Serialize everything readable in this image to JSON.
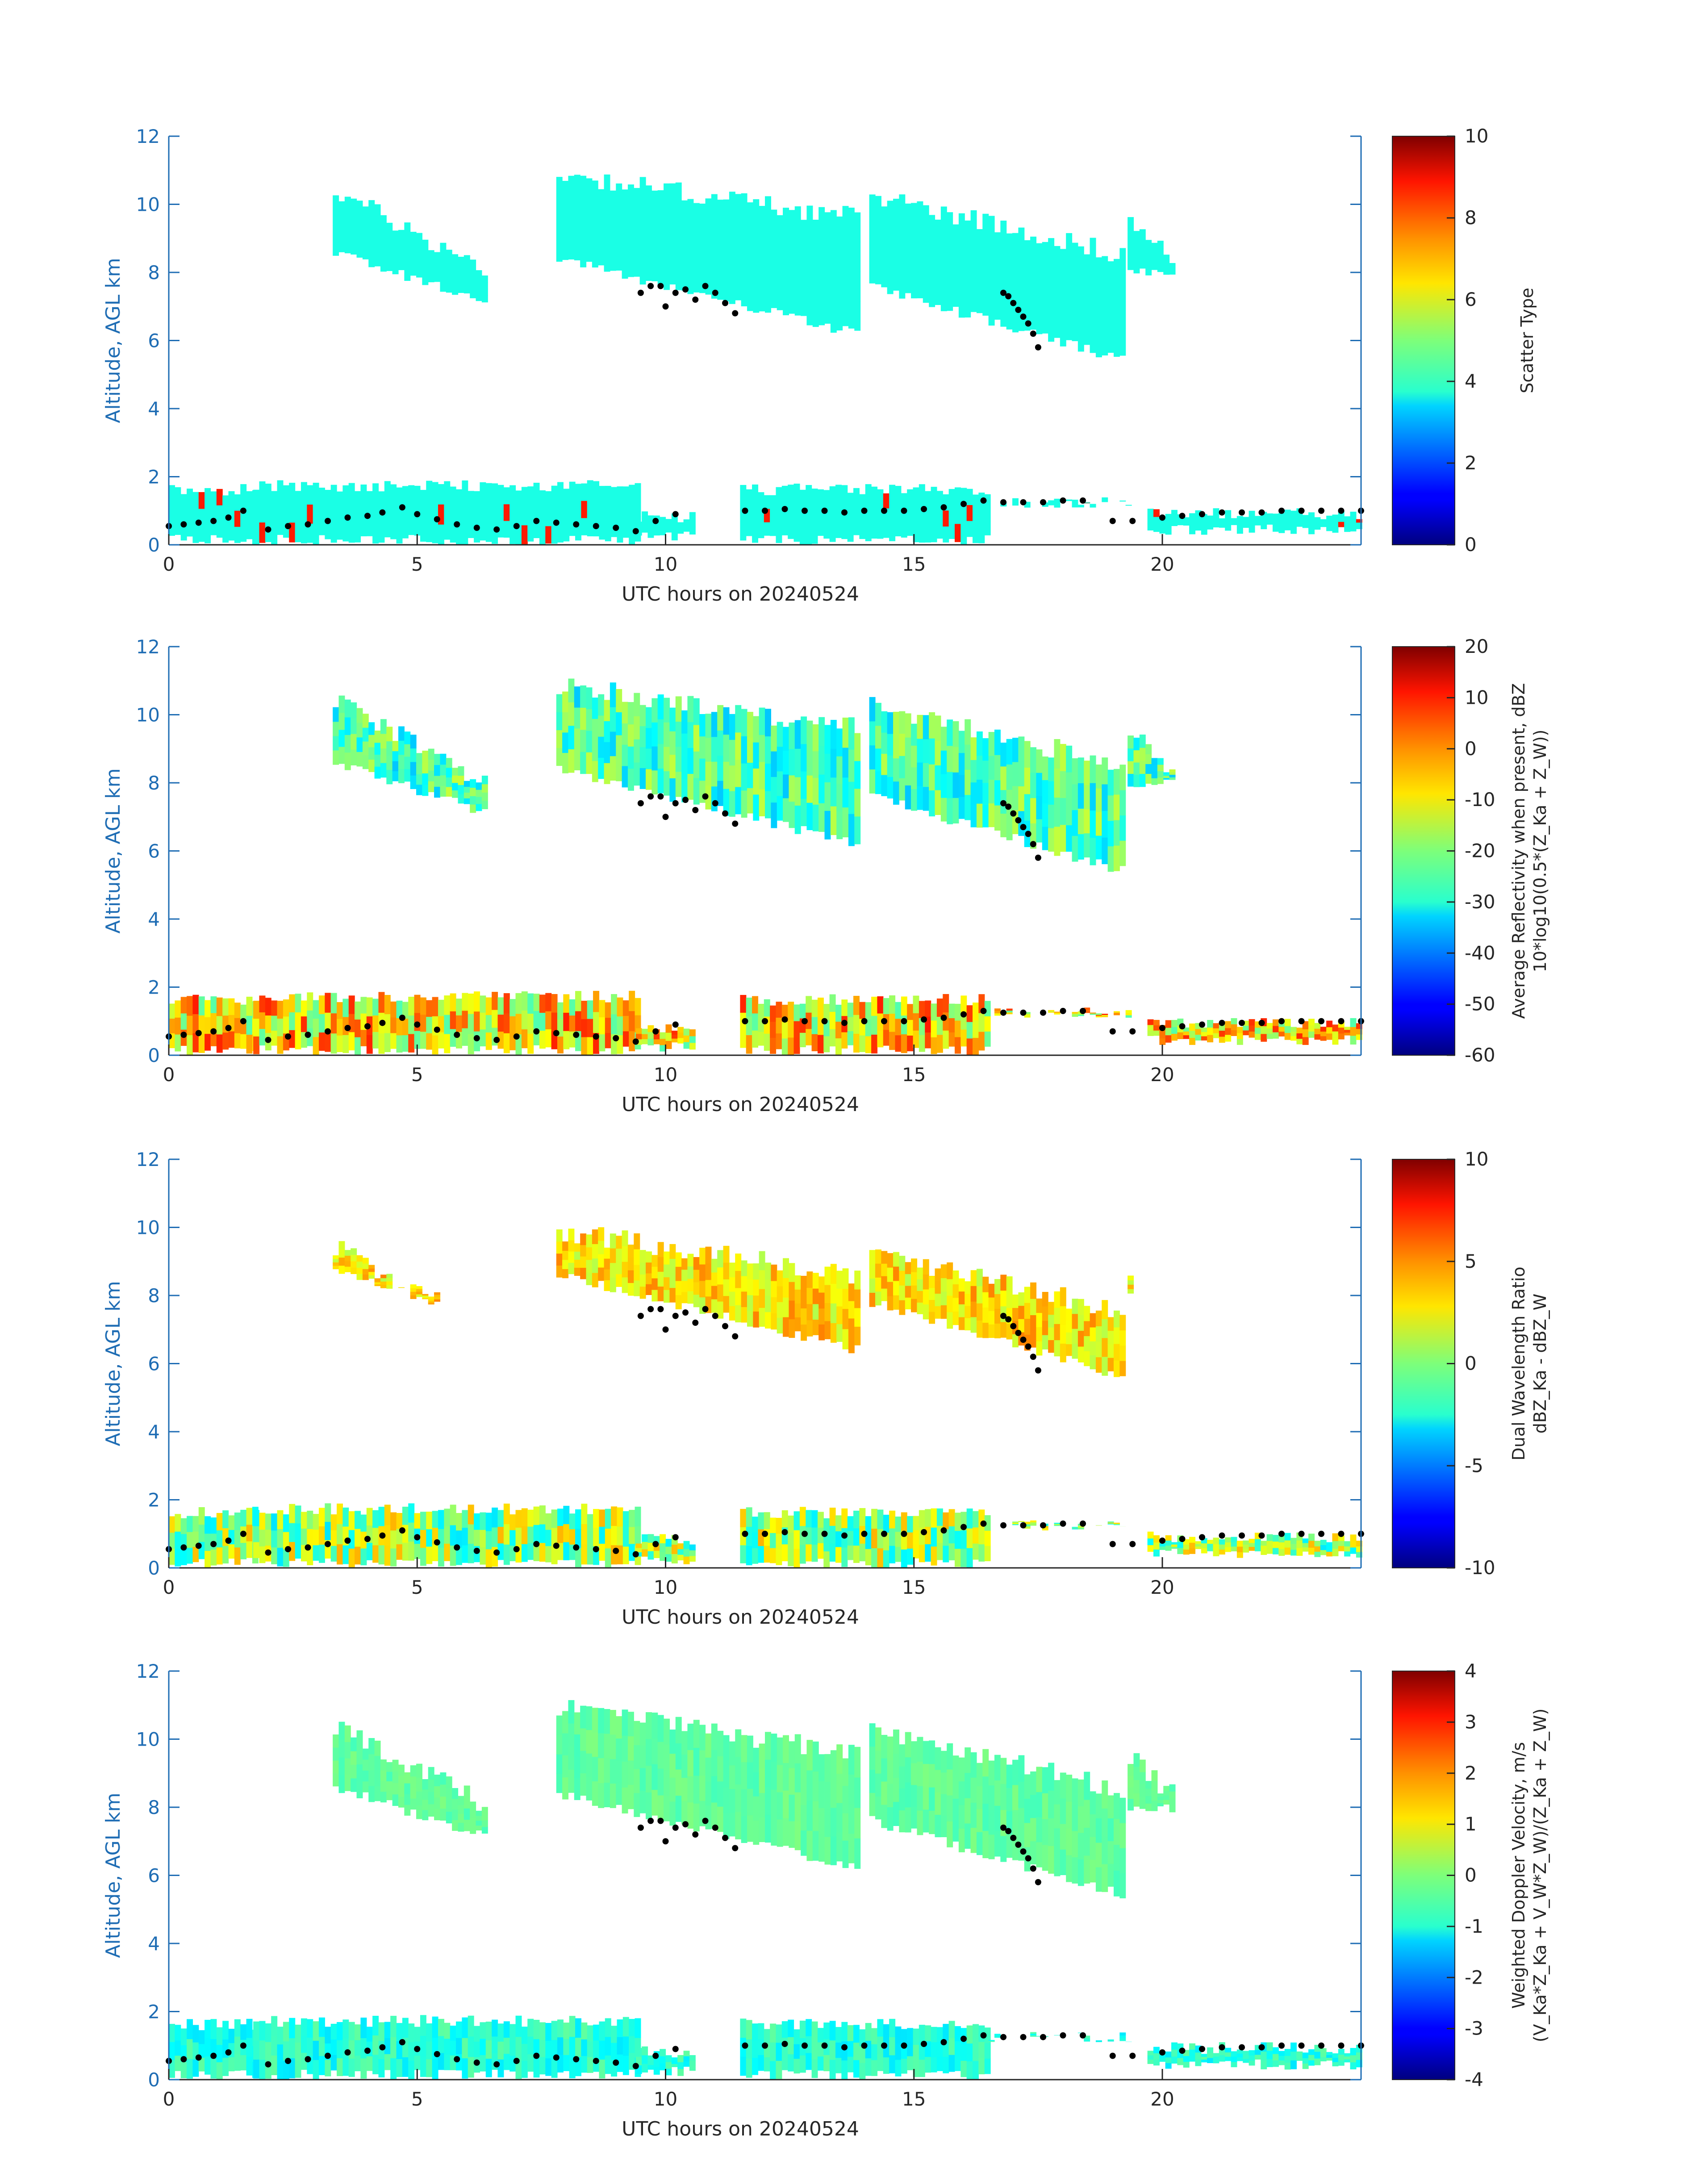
{
  "chart_data": [
    {
      "type": "heatmap",
      "xlabel": "UTC hours on 20240524",
      "ylabel": "Altitude, AGL km",
      "xlim": [
        0,
        24
      ],
      "ylim": [
        0,
        12
      ],
      "xticks": [
        0,
        5,
        10,
        15,
        20
      ],
      "yticks": [
        0,
        2,
        4,
        6,
        8,
        10,
        12
      ],
      "colorbar": {
        "label_lines": [
          "Scatter Type"
        ],
        "range": [
          0,
          10
        ],
        "ticks": [
          0,
          2,
          4,
          6,
          8,
          10
        ],
        "colormap": "jet"
      }
    },
    {
      "type": "heatmap",
      "xlabel": "UTC hours on 20240524",
      "ylabel": "Altitude, AGL km",
      "xlim": [
        0,
        24
      ],
      "ylim": [
        0,
        12
      ],
      "xticks": [
        0,
        5,
        10,
        15,
        20
      ],
      "yticks": [
        0,
        2,
        4,
        6,
        8,
        10,
        12
      ],
      "colorbar": {
        "label_lines": [
          "Average Reflectivity when present, dBZ",
          "10*log10(0.5*(Z_Ka + Z_W))"
        ],
        "range": [
          -60,
          20
        ],
        "ticks": [
          -60,
          -50,
          -40,
          -30,
          -20,
          -10,
          0,
          10,
          20
        ],
        "colormap": "jet"
      }
    },
    {
      "type": "heatmap",
      "xlabel": "UTC hours on 20240524",
      "ylabel": "Altitude, AGL km",
      "xlim": [
        0,
        24
      ],
      "ylim": [
        0,
        12
      ],
      "xticks": [
        0,
        5,
        10,
        15,
        20
      ],
      "yticks": [
        0,
        2,
        4,
        6,
        8,
        10,
        12
      ],
      "colorbar": {
        "label_lines": [
          "Dual Wavelength Ratio",
          "dBZ_Ka - dBZ_W"
        ],
        "range": [
          -10,
          10
        ],
        "ticks": [
          -10,
          -5,
          0,
          5,
          10
        ],
        "colormap": "jet"
      }
    },
    {
      "type": "heatmap",
      "xlabel": "UTC hours on 20240524",
      "ylabel": "Altitude, AGL km",
      "xlim": [
        0,
        24
      ],
      "ylim": [
        0,
        12
      ],
      "xticks": [
        0,
        5,
        10,
        15,
        20
      ],
      "yticks": [
        0,
        2,
        4,
        6,
        8,
        10,
        12
      ],
      "colorbar": {
        "label_lines": [
          "Weighted Doppler Velocity, m/s",
          "(V_Ka*Z_Ka + V_W*Z_W)/(Z_Ka + Z_W)"
        ],
        "range": [
          -4,
          4
        ],
        "ticks": [
          -4,
          -3,
          -2,
          -1,
          0,
          1,
          2,
          3,
          4
        ],
        "colormap": "jet"
      }
    }
  ],
  "cloud_base_points": {
    "series_name": "",
    "x": [
      0.0,
      0.3,
      0.6,
      0.9,
      1.2,
      1.5,
      2.0,
      2.4,
      2.8,
      3.2,
      3.6,
      4.0,
      4.3,
      4.7,
      5.0,
      5.4,
      5.8,
      6.2,
      6.6,
      7.0,
      7.4,
      7.8,
      8.2,
      8.6,
      9.0,
      9.4,
      9.8,
      10.2,
      11.6,
      12.0,
      12.4,
      12.8,
      13.2,
      13.6,
      14.0,
      14.4,
      14.8,
      15.2,
      15.6,
      16.0,
      16.4,
      16.8,
      17.2,
      17.6,
      18.0,
      18.4,
      19.0,
      19.4,
      20.0,
      20.4,
      20.8,
      21.2,
      21.6,
      22.0,
      22.4,
      22.8,
      23.2,
      23.6,
      24.0
    ],
    "y": [
      0.55,
      0.6,
      0.65,
      0.7,
      0.8,
      1.0,
      0.45,
      0.55,
      0.6,
      0.7,
      0.8,
      0.85,
      0.95,
      1.1,
      0.9,
      0.75,
      0.6,
      0.5,
      0.45,
      0.55,
      0.7,
      0.65,
      0.6,
      0.55,
      0.5,
      0.4,
      0.7,
      0.9,
      1.0,
      1.0,
      1.05,
      1.0,
      1.0,
      0.95,
      1.0,
      1.0,
      1.0,
      1.05,
      1.1,
      1.2,
      1.3,
      1.25,
      1.25,
      1.25,
      1.3,
      1.3,
      0.7,
      0.7,
      0.8,
      0.85,
      0.9,
      0.95,
      0.95,
      0.95,
      1.0,
      1.0,
      1.0,
      1.0,
      1.0
    ],
    "upper_x": [
      9.5,
      9.7,
      9.9,
      10.0,
      10.2,
      10.4,
      10.6,
      10.8,
      11.0,
      11.2,
      11.4,
      16.8,
      16.9,
      17.0,
      17.1,
      17.2,
      17.3,
      17.4,
      17.5
    ],
    "upper_y": [
      7.4,
      7.6,
      7.6,
      7.0,
      7.4,
      7.5,
      7.2,
      7.6,
      7.4,
      7.1,
      6.8,
      7.4,
      7.3,
      7.1,
      6.9,
      6.7,
      6.5,
      6.2,
      5.8
    ]
  }
}
